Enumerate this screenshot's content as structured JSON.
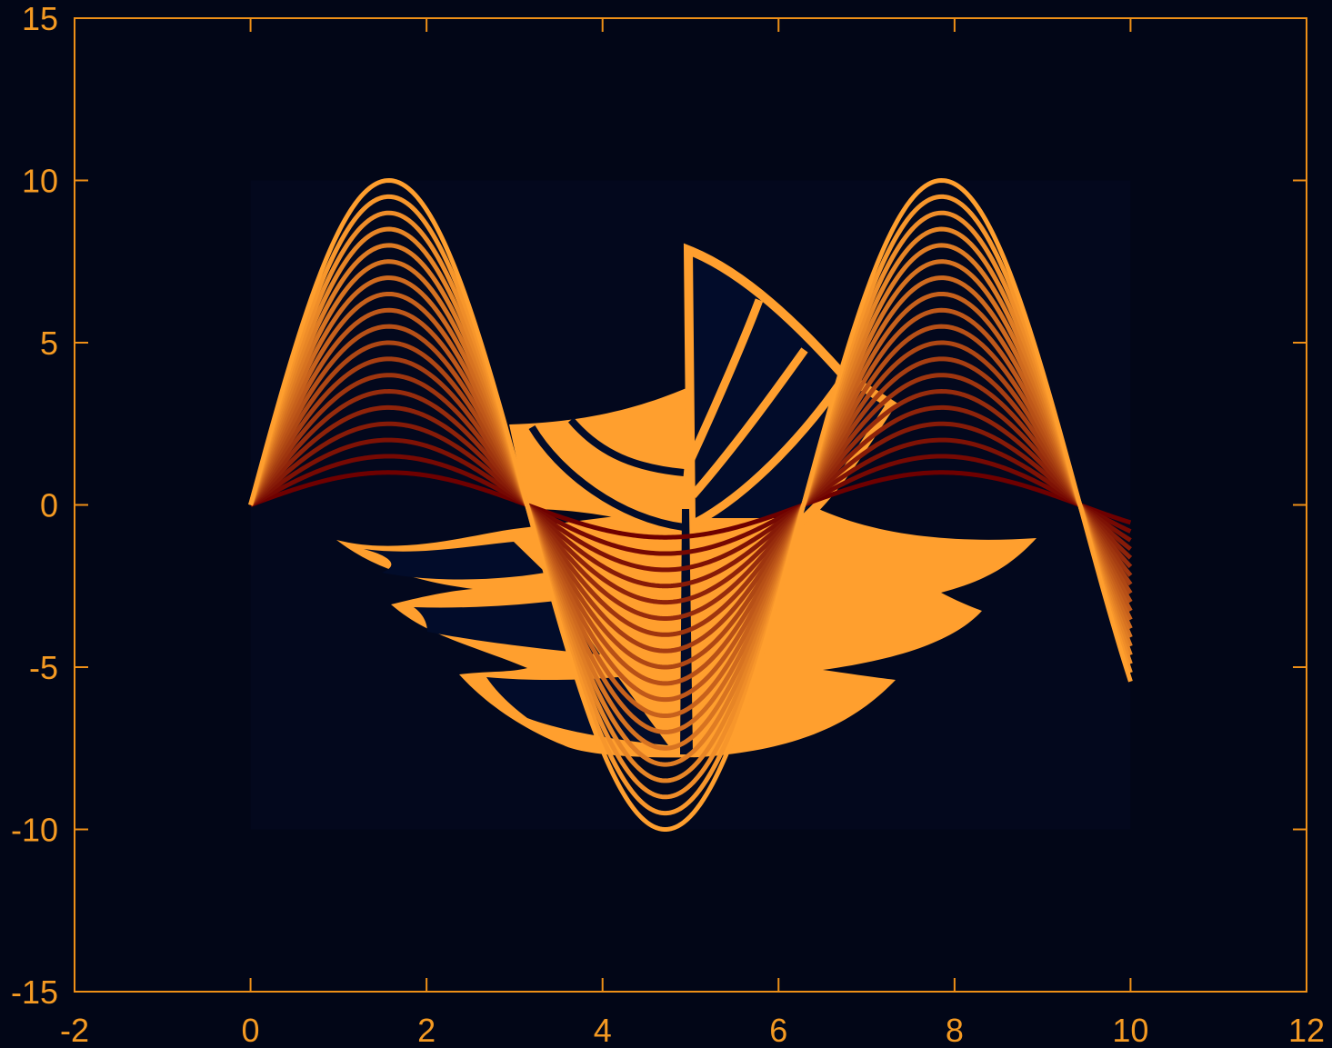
{
  "chart_data": {
    "type": "line",
    "title": "",
    "xlabel": "",
    "ylabel": "",
    "xlim": [
      -2,
      12
    ],
    "ylim": [
      -15,
      15
    ],
    "x_ticks": [
      -2,
      0,
      2,
      4,
      6,
      8,
      10,
      12
    ],
    "y_ticks": [
      -15,
      -10,
      -5,
      0,
      5,
      10,
      15
    ],
    "x_tick_labels": [
      "-2",
      "0",
      "2",
      "4",
      "6",
      "8",
      "10",
      "12"
    ],
    "y_tick_labels": [
      "-15",
      "-10",
      "-5",
      "0",
      "5",
      "10",
      "15"
    ],
    "grid": false,
    "legend": "none",
    "series": [
      {
        "amplitude": 1,
        "x_range": [
          0,
          10
        ]
      },
      {
        "amplitude": 1.5,
        "x_range": [
          0,
          10
        ]
      },
      {
        "amplitude": 2,
        "x_range": [
          0,
          10
        ]
      },
      {
        "amplitude": 2.5,
        "x_range": [
          0,
          10
        ]
      },
      {
        "amplitude": 3,
        "x_range": [
          0,
          10
        ]
      },
      {
        "amplitude": 3.5,
        "x_range": [
          0,
          10
        ]
      },
      {
        "amplitude": 4,
        "x_range": [
          0,
          10
        ]
      },
      {
        "amplitude": 4.5,
        "x_range": [
          0,
          10
        ]
      },
      {
        "amplitude": 5,
        "x_range": [
          0,
          10
        ]
      },
      {
        "amplitude": 5.5,
        "x_range": [
          0,
          10
        ]
      },
      {
        "amplitude": 6,
        "x_range": [
          0,
          10
        ]
      },
      {
        "amplitude": 6.5,
        "x_range": [
          0,
          10
        ]
      },
      {
        "amplitude": 7,
        "x_range": [
          0,
          10
        ]
      },
      {
        "amplitude": 7.5,
        "x_range": [
          0,
          10
        ]
      },
      {
        "amplitude": 8,
        "x_range": [
          0,
          10
        ]
      },
      {
        "amplitude": 8.5,
        "x_range": [
          0,
          10
        ]
      },
      {
        "amplitude": 9,
        "x_range": [
          0,
          10
        ]
      },
      {
        "amplitude": 9.5,
        "x_range": [
          0,
          10
        ]
      },
      {
        "amplitude": 10,
        "x_range": [
          0,
          10
        ]
      }
    ],
    "background_image": {
      "x_range": [
        0,
        10
      ],
      "y_range": [
        -10,
        10
      ],
      "description_colors": [
        "#ff9f2e",
        "#020c2a"
      ]
    },
    "colors": {
      "background": "#020617",
      "axis": "#ee8f17",
      "text": "#f59a22",
      "line_low": "#6e0000",
      "line_high": "#ff9f2e",
      "emblem_orange": "#ff9f2e",
      "emblem_navy": "#020c2a"
    }
  }
}
